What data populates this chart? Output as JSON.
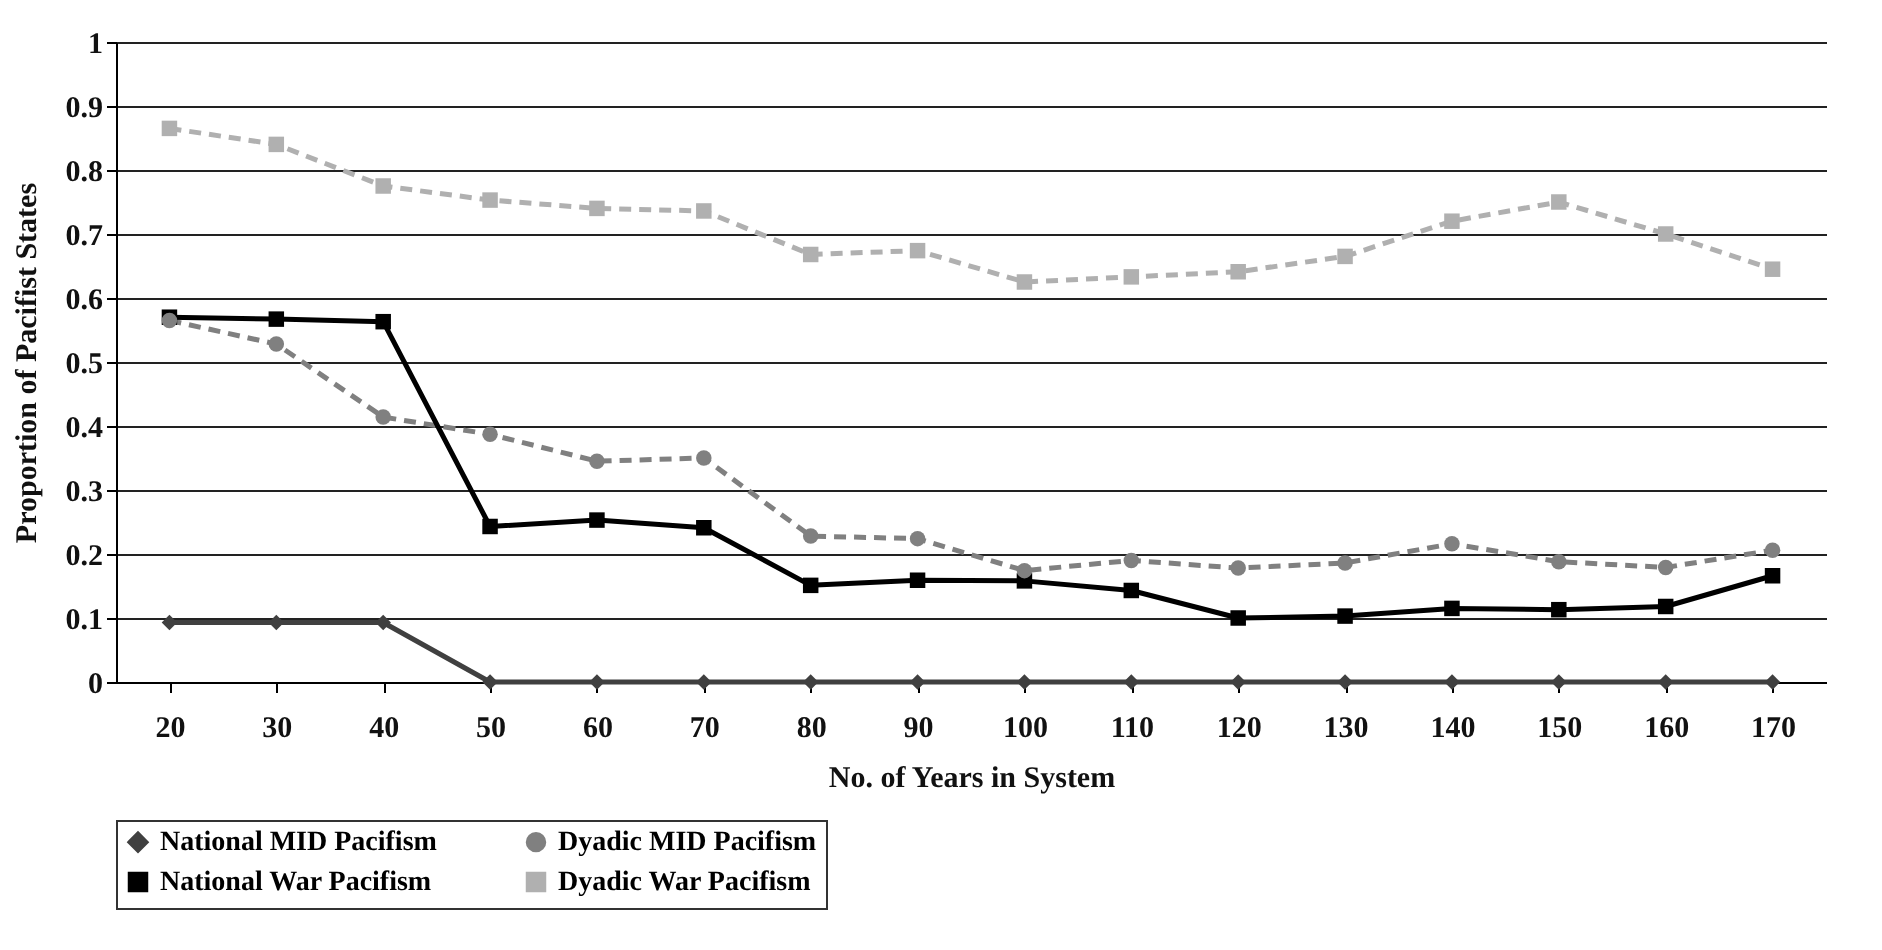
{
  "chart_data": {
    "type": "line",
    "xlabel": "No. of Years in System",
    "ylabel": "Proportion of Pacifist States",
    "categories": [
      "20",
      "30",
      "40",
      "50",
      "60",
      "70",
      "80",
      "90",
      "100",
      "110",
      "120",
      "130",
      "140",
      "150",
      "160",
      "170"
    ],
    "ylim": [
      0,
      1
    ],
    "yticks": [
      0,
      0.1,
      0.2,
      0.3,
      0.4,
      0.5,
      0.6,
      0.7,
      0.8,
      0.9,
      1
    ],
    "grid": "y",
    "legend": "bottom",
    "series": [
      {
        "name": "National MID Pacifism",
        "color": "#404040",
        "marker": "diamond",
        "line_style": "solid",
        "values": [
          0.093,
          0.093,
          0.093,
          0,
          0,
          0,
          0,
          0,
          0,
          0,
          0,
          0,
          0,
          0,
          0,
          0
        ]
      },
      {
        "name": "Dyadic MID Pacifism",
        "color": "#808080",
        "marker": "circle",
        "line_style": "dashed",
        "values": [
          0.565,
          0.528,
          0.414,
          0.387,
          0.345,
          0.35,
          0.228,
          0.224,
          0.174,
          0.19,
          0.178,
          0.186,
          0.216,
          0.188,
          0.179,
          0.206
        ]
      },
      {
        "name": "National War Pacifism",
        "color": "#000000",
        "marker": "square",
        "line_style": "solid",
        "values": [
          0.57,
          0.567,
          0.563,
          0.243,
          0.253,
          0.241,
          0.151,
          0.159,
          0.158,
          0.143,
          0.1,
          0.103,
          0.115,
          0.113,
          0.118,
          0.166
        ]
      },
      {
        "name": "Dyadic War Pacifism",
        "color": "#b0b0b0",
        "marker": "square",
        "line_style": "dashed",
        "values": [
          0.865,
          0.84,
          0.775,
          0.753,
          0.74,
          0.736,
          0.668,
          0.674,
          0.625,
          0.633,
          0.641,
          0.665,
          0.72,
          0.75,
          0.7,
          0.645
        ]
      }
    ]
  }
}
